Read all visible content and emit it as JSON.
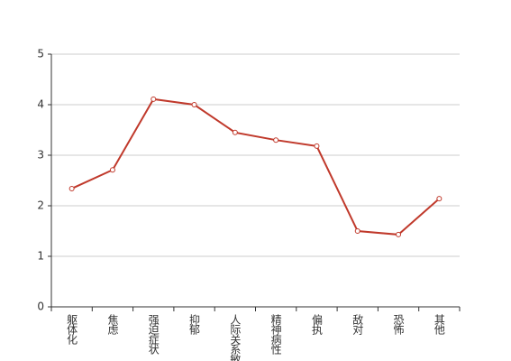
{
  "chart_data": {
    "type": "line",
    "categories": [
      "躯体化",
      "焦虑",
      "强迫症状",
      "抑郁",
      "人际关系敏感",
      "精神病性",
      "偏执",
      "敌对",
      "恐怖",
      "其他"
    ],
    "series": [
      {
        "color": "#c0392b",
        "values": [
          2.34,
          2.71,
          4.11,
          4.0,
          3.45,
          3.3,
          3.18,
          1.5,
          1.43,
          2.14
        ]
      }
    ],
    "ylim": [
      0,
      5
    ],
    "yticks": [
      0,
      1,
      2,
      3,
      4,
      5
    ],
    "grid": true
  }
}
